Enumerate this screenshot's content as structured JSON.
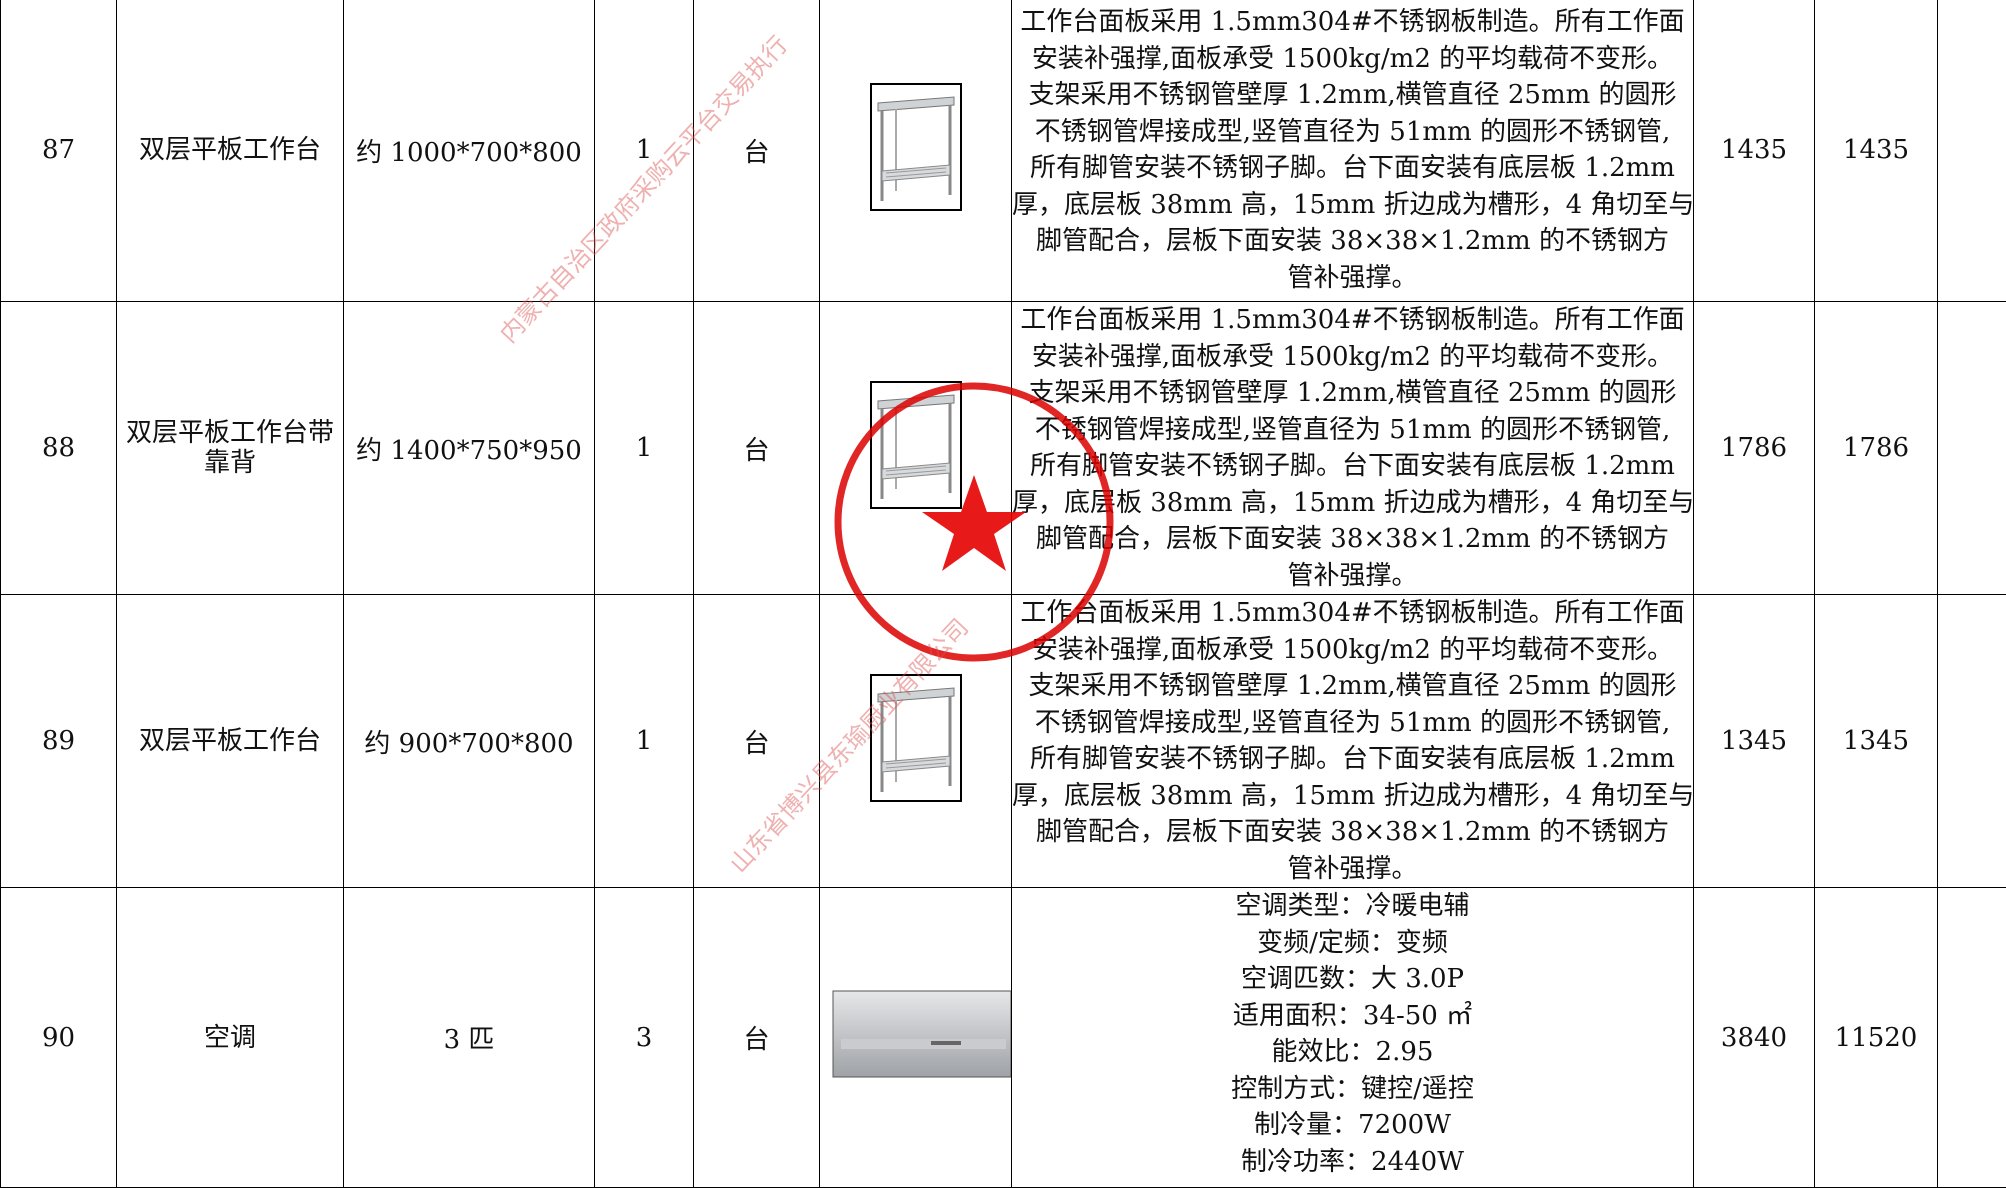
{
  "table": {
    "rows": [
      {
        "no": "87",
        "name": "双层平板工作台",
        "size": "约 1000*700*800",
        "qty": "1",
        "unit": "台",
        "description": [
          "工作台面板采用 1.5mm304#不锈钢板制造。所有工作面",
          "安装补强撑,面板承受 1500kg/m2 的平均载荷不变形。",
          "支架采用不锈钢管壁厚 1.2mm,横管直径 25mm 的圆形",
          "不锈钢管焊接成型,竖管直径为 51mm 的圆形不锈钢管,",
          "所有脚管安装不锈钢子脚。台下面安装有底层板 1.2mm",
          "厚，底层板 38mm 高，15mm 折边成为槽形，4 角切至与",
          "脚管配合，层板下面安装 38×38×1.2mm 的不锈钢方",
          "管补强撑。"
        ],
        "price": "1435",
        "total": "1435"
      },
      {
        "no": "88",
        "name": "双层平板工作台带靠背",
        "size": "约 1400*750*950",
        "qty": "1",
        "unit": "台",
        "description": [
          "工作台面板采用 1.5mm304#不锈钢板制造。所有工作面",
          "安装补强撑,面板承受 1500kg/m2 的平均载荷不变形。",
          "支架采用不锈钢管壁厚 1.2mm,横管直径 25mm 的圆形",
          "不锈钢管焊接成型,竖管直径为 51mm 的圆形不锈钢管,",
          "所有脚管安装不锈钢子脚。台下面安装有底层板 1.2mm",
          "厚，底层板 38mm 高，15mm 折边成为槽形，4 角切至与",
          "脚管配合，层板下面安装 38×38×1.2mm 的不锈钢方",
          "管补强撑。"
        ],
        "price": "1786",
        "total": "1786"
      },
      {
        "no": "89",
        "name": "双层平板工作台",
        "size": "约 900*700*800",
        "qty": "1",
        "unit": "台",
        "description": [
          "工作台面板采用 1.5mm304#不锈钢板制造。所有工作面",
          "安装补强撑,面板承受 1500kg/m2 的平均载荷不变形。",
          "支架采用不锈钢管壁厚 1.2mm,横管直径 25mm 的圆形",
          "不锈钢管焊接成型,竖管直径为 51mm 的圆形不锈钢管,",
          "所有脚管安装不锈钢子脚。台下面安装有底层板 1.2mm",
          "厚，底层板 38mm 高，15mm 折边成为槽形，4 角切至与",
          "脚管配合，层板下面安装 38×38×1.2mm 的不锈钢方",
          "管补强撑。"
        ],
        "price": "1345",
        "total": "1345"
      },
      {
        "no": "90",
        "name": "空调",
        "size": "3 匹",
        "qty": "3",
        "unit": "台",
        "description": [
          "空调类型：冷暖电辅",
          "变频/定频：变频",
          "空调匹数：大 3.0P",
          "适用面积：34-50 ㎡",
          "能效比：2.95",
          "控制方式：键控/遥控",
          "制冷量：7200W",
          "制冷功率：2440W"
        ],
        "price": "3840",
        "total": "11520"
      }
    ]
  },
  "watermarks": [
    "内蒙古自治区政府采购云平台交易执行",
    "山东省博兴县东瑜厨业有限公司"
  ]
}
